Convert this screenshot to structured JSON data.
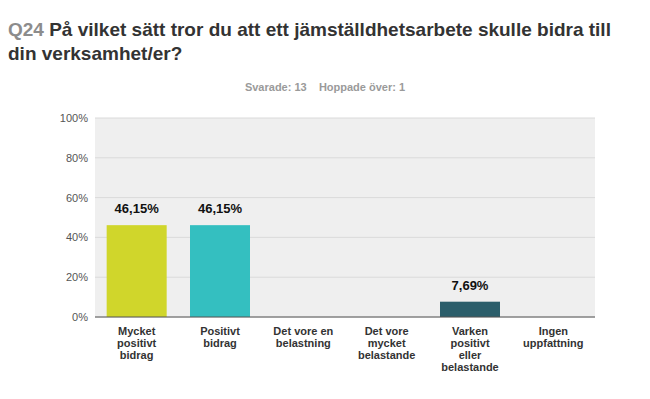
{
  "chart_data": {
    "type": "bar",
    "title": "Q24 På vilket sätt tror du att ett jämställdhetsarbete skulle bidra till din verksamhet/er?",
    "subtitle": "Svarade: 13    Hoppade över: 1",
    "categories": [
      "Mycket positivt bidrag",
      "Positivt bidrag",
      "Det vore en belastning",
      "Det vore mycket belastande",
      "Varken positivt eller belastande",
      "Ingen uppfattning"
    ],
    "values": [
      46.15,
      46.15,
      0,
      0,
      7.69,
      0
    ],
    "value_labels": [
      "46,15%",
      "46,15%",
      null,
      null,
      "7,69%",
      null
    ],
    "colors": [
      "#d0d62b",
      "#34bfc0",
      "#f79a3c",
      "#e35d68",
      "#2b5e6b",
      "#8b8b8b"
    ],
    "ylim": [
      0,
      100
    ],
    "yticks": [
      {
        "value": 0,
        "label": "0%"
      },
      {
        "value": 20,
        "label": "20%"
      },
      {
        "value": 40,
        "label": "40%"
      },
      {
        "value": 60,
        "label": "60%"
      },
      {
        "value": 80,
        "label": "80%"
      },
      {
        "value": 100,
        "label": "100%"
      }
    ],
    "grid": true,
    "data_labels": true
  }
}
